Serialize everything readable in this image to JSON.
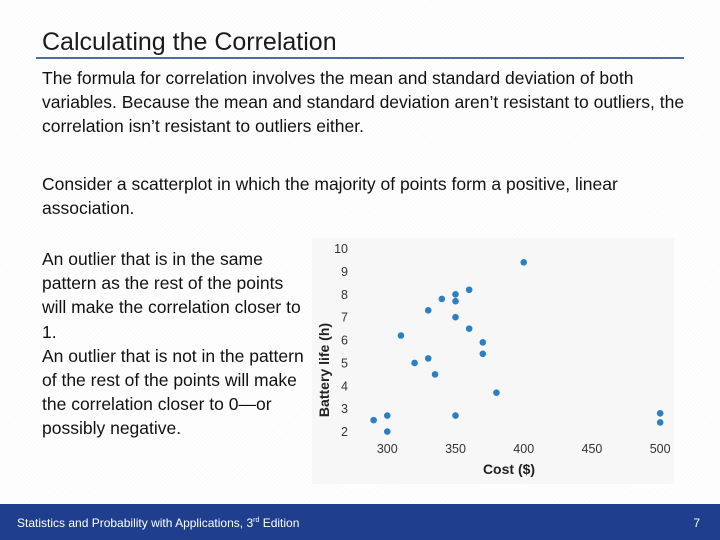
{
  "slide": {
    "title": "Calculating the Correlation",
    "paragraph1": "The formula for correlation involves the mean and standard deviation of both variables. Because the mean and standard deviation aren’t resistant to outliers, the correlation isn’t resistant to outliers either.",
    "paragraph2": "Consider a scatterplot in which the majority of points form a positive, linear association.",
    "side_text_1": "An outlier that is in the same pattern as the rest of the points will make the correlation closer to 1.",
    "side_text_2": "An outlier that is not in the pattern of the rest of the points will make the correlation closer to 0—or possibly negative."
  },
  "footer": {
    "text_before": "Statistics and Probability with Applications, 3",
    "superscript": "rd",
    "text_after": " Edition",
    "page_number": "7"
  },
  "colors": {
    "accent_rule": "#4a6ea8",
    "footer_bg": "#1f3f8e",
    "point": "#2a80c4"
  },
  "chart_data": {
    "type": "scatter",
    "xlabel": "Cost ($)",
    "ylabel": "Battery life (h)",
    "xlim": [
      280,
      505
    ],
    "ylim": [
      1.5,
      10.2
    ],
    "x_ticks": [
      300,
      350,
      400,
      450,
      500
    ],
    "y_ticks": [
      2,
      3,
      4,
      5,
      6,
      7,
      8,
      9,
      10
    ],
    "grid": false,
    "points": [
      {
        "x": 290,
        "y": 2.5
      },
      {
        "x": 300,
        "y": 2.7
      },
      {
        "x": 300,
        "y": 2.0
      },
      {
        "x": 310,
        "y": 6.2
      },
      {
        "x": 320,
        "y": 5.0
      },
      {
        "x": 330,
        "y": 5.2
      },
      {
        "x": 330,
        "y": 7.3
      },
      {
        "x": 335,
        "y": 4.5
      },
      {
        "x": 340,
        "y": 7.8
      },
      {
        "x": 350,
        "y": 8.0
      },
      {
        "x": 350,
        "y": 7.7
      },
      {
        "x": 350,
        "y": 7.0
      },
      {
        "x": 350,
        "y": 2.7
      },
      {
        "x": 360,
        "y": 8.2
      },
      {
        "x": 360,
        "y": 6.5
      },
      {
        "x": 370,
        "y": 5.9
      },
      {
        "x": 370,
        "y": 5.4
      },
      {
        "x": 380,
        "y": 3.7
      },
      {
        "x": 400,
        "y": 9.4
      },
      {
        "x": 500,
        "y": 2.8
      },
      {
        "x": 500,
        "y": 2.4
      }
    ]
  }
}
